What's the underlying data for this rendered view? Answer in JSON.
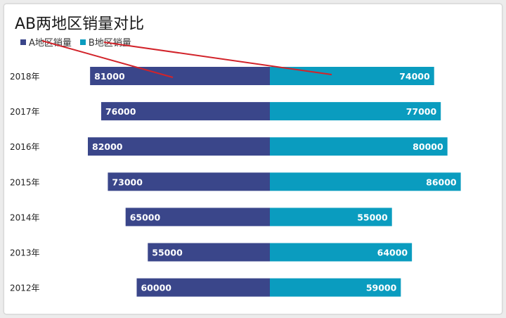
{
  "colors": {
    "series_a": "#3a468a",
    "series_b": "#0a9cbf",
    "arrow": "#d2232a"
  },
  "chart_data": {
    "type": "bar",
    "orientation": "horizontal-butterfly",
    "title": "AB两地区销量对比",
    "categories": [
      "2018年",
      "2017年",
      "2016年",
      "2015年",
      "2014年",
      "2013年",
      "2012年"
    ],
    "series": [
      {
        "name": "A地区销量",
        "values": [
          81000,
          76000,
          82000,
          73000,
          65000,
          55000,
          60000
        ]
      },
      {
        "name": "B地区销量",
        "values": [
          74000,
          77000,
          80000,
          86000,
          55000,
          64000,
          59000
        ]
      }
    ],
    "legend_position": "top-left",
    "grid": false,
    "data_labels": true
  }
}
